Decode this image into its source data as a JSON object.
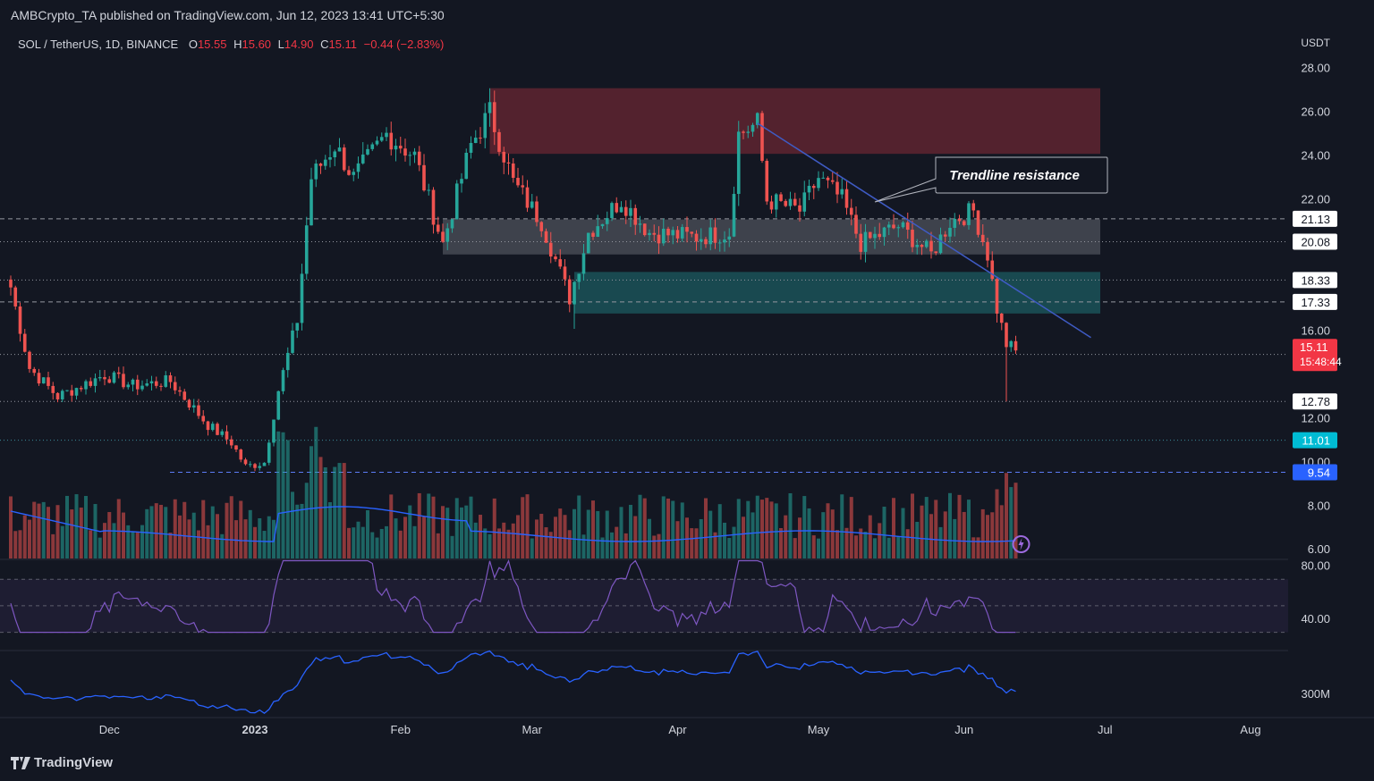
{
  "header": {
    "published": "AMBCrypto_TA published on TradingView.com, Jun 12, 2023 13:41 UTC+5:30",
    "symbol": "SOL / TetherUS, 1D, BINANCE",
    "o_label": "O",
    "o_value": "15.55",
    "h_label": "H",
    "h_value": "15.60",
    "l_label": "L",
    "l_value": "14.90",
    "c_label": "C",
    "c_value": "15.11",
    "change": "−0.44 (−2.83%)"
  },
  "footer": {
    "brand": "TradingView"
  },
  "colors": {
    "background": "#131722",
    "up": "#26a69a",
    "down": "#ef5350",
    "trendline": "#3f5bc4",
    "rsi": "#7e57c2",
    "supply_zone": "#5b2430",
    "demand_zone": "#1b4f55",
    "range_zone": "#4a4d57",
    "price_badge": "#f23645",
    "blue_badge": "#2962ff",
    "teal_badge": "#00bcd4"
  },
  "chart_data": {
    "type": "candlestick",
    "currency_label": "USDT",
    "price_axis_ticks": [
      "28.00",
      "26.00",
      "24.00",
      "22.00",
      "16.00",
      "12.00",
      "10.00",
      "8.00",
      "6.00"
    ],
    "ylim": [
      5.6,
      28.6
    ],
    "time_axis_labels": [
      "Dec",
      "2023",
      "Feb",
      "Mar",
      "Apr",
      "May",
      "Jun",
      "Jul",
      "Aug"
    ],
    "anchors": [
      [
        "Nov 10",
        18.0
      ],
      [
        "Nov 14",
        14.3
      ],
      [
        "Nov 20",
        13.0
      ],
      [
        "Nov 30",
        14.0
      ],
      [
        "Dec 6",
        13.5
      ],
      [
        "Dec 14",
        13.7
      ],
      [
        "Dec 22",
        11.7
      ],
      [
        "Dec 27",
        10.9
      ],
      [
        "Dec 30",
        9.8
      ],
      [
        "Jan 3",
        10.0
      ],
      [
        "Jan 6",
        13.3
      ],
      [
        "Jan 10",
        16.5
      ],
      [
        "Jan 13",
        23.0
      ],
      [
        "Jan 18",
        24.5
      ],
      [
        "Jan 22",
        23.0
      ],
      [
        "Jan 29",
        25.0
      ],
      [
        "Feb 4",
        24.0
      ],
      [
        "Feb 10",
        20.0
      ],
      [
        "Feb 16",
        24.5
      ],
      [
        "Feb 20",
        26.0
      ],
      [
        "Feb 25",
        22.8
      ],
      [
        "Mar 3",
        21.0
      ],
      [
        "Mar 9",
        17.5
      ],
      [
        "Mar 13",
        20.5
      ],
      [
        "Mar 20",
        22.0
      ],
      [
        "Mar 26",
        20.5
      ],
      [
        "Apr 5",
        20.3
      ],
      [
        "Apr 12",
        20.5
      ],
      [
        "Apr 14",
        25.0
      ],
      [
        "Apr 18",
        25.5
      ],
      [
        "Apr 20",
        22.0
      ],
      [
        "Apr 27",
        21.5
      ],
      [
        "May 1",
        23.0
      ],
      [
        "May 6",
        22.0
      ],
      [
        "May 10",
        20.0
      ],
      [
        "May 18",
        20.8
      ],
      [
        "May 25",
        19.5
      ],
      [
        "May 29",
        21.0
      ],
      [
        "Jun 3",
        21.5
      ],
      [
        "Jun 6",
        19.5
      ],
      [
        "Jun 8",
        17.0
      ],
      [
        "Jun 10",
        15.4
      ],
      [
        "Jun 12",
        15.11
      ]
    ],
    "zones": [
      {
        "name": "supply-zone",
        "from": "Feb 20",
        "to": "Jun 30",
        "top": 27.1,
        "bottom": 24.1,
        "color": "#5b2430"
      },
      {
        "name": "range-zone",
        "from": "Feb 10",
        "to": "Jun 30",
        "top": 21.1,
        "bottom": 19.5,
        "color": "#4a4d57"
      },
      {
        "name": "demand-zone",
        "from": "Mar 10",
        "to": "Jun 30",
        "top": 18.7,
        "bottom": 16.8,
        "color": "#1b4f55"
      }
    ],
    "levels": [
      {
        "label": "21.13",
        "value": 21.13,
        "style": "dashed",
        "badge": "white"
      },
      {
        "label": "20.08",
        "value": 20.08,
        "style": "dotted",
        "badge": "white"
      },
      {
        "label": "18.33",
        "value": 18.33,
        "style": "dotted",
        "badge": "white"
      },
      {
        "label": "17.33",
        "value": 17.33,
        "style": "dashed",
        "badge": "white"
      },
      {
        "label": "14.93",
        "value": 14.93,
        "style": "dotted",
        "badge": "white"
      },
      {
        "label": "12.78",
        "value": 12.78,
        "style": "dotted",
        "badge": "white"
      },
      {
        "label": "11.01",
        "value": 11.01,
        "style": "dotted",
        "badge": "teal"
      },
      {
        "label": "9.54",
        "value": 9.54,
        "style": "dashed",
        "badge": "blue"
      }
    ],
    "current_price": {
      "label": "15.11",
      "countdown": "15:48:44",
      "value": 15.11
    },
    "trendline": {
      "from": [
        "Apr 18",
        25.5
      ],
      "to": [
        "Jun 28",
        15.7
      ],
      "color": "#3f5bc4"
    },
    "annotation": {
      "text": "Trendline resistance",
      "points_to": [
        "May 13",
        21.9
      ]
    },
    "volume_axis_tick": "300M",
    "rsi_axis_ticks": [
      "80.00",
      "40.00"
    ],
    "rsi_ylim": [
      25,
      85
    ],
    "rsi_bands": [
      30,
      70
    ]
  }
}
